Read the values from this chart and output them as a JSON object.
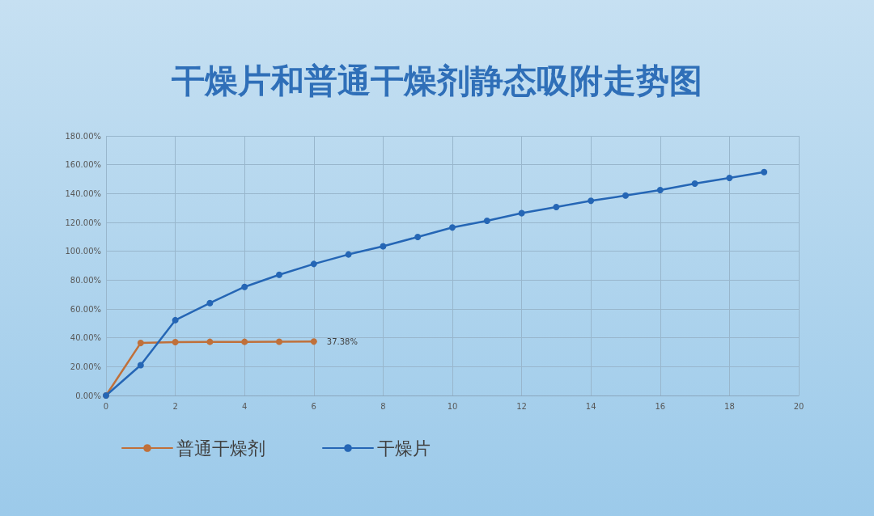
{
  "chart_data": {
    "type": "line",
    "title": "干燥片和普通干燥剂静态吸附走势图",
    "series": [
      {
        "name": "普通干燥剂",
        "color": "#c0703a",
        "x": [
          0,
          1,
          2,
          3,
          4,
          5,
          6
        ],
        "values": [
          0,
          36.4,
          37.0,
          37.2,
          37.2,
          37.3,
          37.38
        ],
        "value_labels": [
          null,
          null,
          null,
          null,
          null,
          null,
          "37.38%"
        ]
      },
      {
        "name": "干燥片",
        "color": "#2566b5",
        "x": [
          0,
          1,
          2,
          3,
          4,
          5,
          6,
          7,
          8,
          9,
          10,
          11,
          12,
          13,
          14,
          15,
          16,
          17,
          18,
          19
        ],
        "values": [
          0,
          21.0,
          52.2,
          64.1,
          75.3,
          83.7,
          91.2,
          97.8,
          103.5,
          109.9,
          116.5,
          121.1,
          126.4,
          130.7,
          135.0,
          138.6,
          142.4,
          146.9,
          150.8,
          154.9
        ]
      }
    ],
    "xlim": [
      0,
      20
    ],
    "xticks": [
      0,
      2,
      4,
      6,
      8,
      10,
      12,
      14,
      16,
      18,
      20
    ],
    "ylim": [
      0,
      180
    ],
    "yticks": [
      {
        "value": 0,
        "label": "0.00%"
      },
      {
        "value": 20,
        "label": "20.00%"
      },
      {
        "value": 40,
        "label": "40.00%"
      },
      {
        "value": 60,
        "label": "60.00%"
      },
      {
        "value": 80,
        "label": "80.00%"
      },
      {
        "value": 100,
        "label": "100.00%"
      },
      {
        "value": 120,
        "label": "120.00%"
      },
      {
        "value": 140,
        "label": "140.00%"
      },
      {
        "value": 160,
        "label": "160.00%"
      },
      {
        "value": 180,
        "label": "180.00%"
      }
    ],
    "grid": true,
    "legend": "bottom left",
    "marker": "circle",
    "line_style": "solid"
  }
}
